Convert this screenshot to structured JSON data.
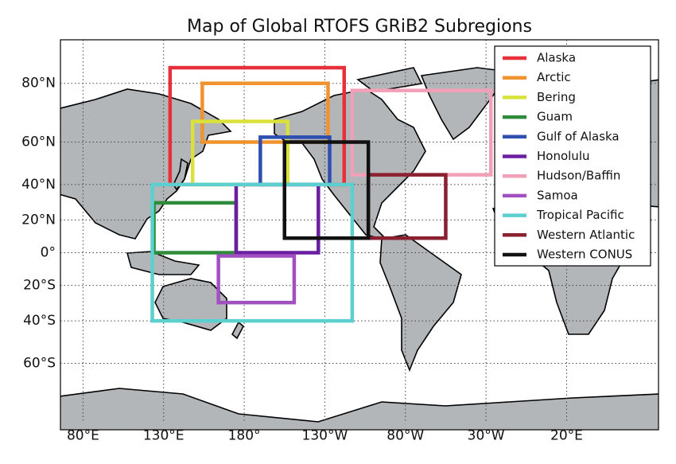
{
  "map": {
    "title": "Map of Global RTOFS GRiB2 Subregions",
    "xlim": [
      66,
      437
    ],
    "ylim": [
      -80,
      90
    ],
    "grid": true,
    "xticks": [
      {
        "value": 80,
        "label": "80°E"
      },
      {
        "value": 130,
        "label": "130°E"
      },
      {
        "value": 180,
        "label": "180°"
      },
      {
        "value": 230,
        "label": "130°W"
      },
      {
        "value": 280,
        "label": "80°W"
      },
      {
        "value": 330,
        "label": "30°W"
      },
      {
        "value": 380,
        "label": "20°E"
      }
    ],
    "yticks": [
      {
        "value": 80,
        "label": "80°N"
      },
      {
        "value": 60,
        "label": "60°N"
      },
      {
        "value": 40,
        "label": "40°N"
      },
      {
        "value": 20,
        "label": "20°N"
      },
      {
        "value": 0,
        "label": "0°"
      },
      {
        "value": -20,
        "label": "20°S"
      },
      {
        "value": -40,
        "label": "40°S"
      },
      {
        "value": -60,
        "label": "60°S"
      }
    ],
    "regions": [
      {
        "name": "Alaska",
        "color": "#e8303a",
        "lon": [
          134,
          242
        ],
        "lat": [
          40,
          84
        ]
      },
      {
        "name": "Arctic",
        "color": "#f0922e",
        "lon": [
          154,
          232
        ],
        "lat": [
          60,
          80
        ]
      },
      {
        "name": "Bering",
        "color": "#d9e23a",
        "lon": [
          148,
          207
        ],
        "lat": [
          40,
          68
        ]
      },
      {
        "name": "Guam",
        "color": "#2e8b3a",
        "lon": [
          124,
          175
        ],
        "lat": [
          0,
          30
        ]
      },
      {
        "name": "Gulf of Alaska",
        "color": "#2f4fb0",
        "lon": [
          190,
          233
        ],
        "lat": [
          40,
          62
        ]
      },
      {
        "name": "Honolulu",
        "color": "#6a1fa0",
        "lon": [
          175,
          226
        ],
        "lat": [
          0,
          40
        ]
      },
      {
        "name": "Hudson/Baffin",
        "color": "#f2a0b8",
        "lon": [
          247,
          333
        ],
        "lat": [
          45,
          78
        ]
      },
      {
        "name": "Samoa",
        "color": "#a050c0",
        "lon": [
          164,
          211
        ],
        "lat": [
          -30,
          -2
        ]
      },
      {
        "name": "Tropical Pacific",
        "color": "#5ccfcf",
        "lon": [
          123,
          247
        ],
        "lat": [
          -40,
          40
        ]
      },
      {
        "name": "Western Atlantic",
        "color": "#8b2030",
        "lon": [
          257,
          305
        ],
        "lat": [
          9,
          45
        ]
      },
      {
        "name": "Western CONUS",
        "color": "#111111",
        "lon": [
          205,
          257
        ],
        "lat": [
          9,
          60
        ]
      }
    ]
  }
}
